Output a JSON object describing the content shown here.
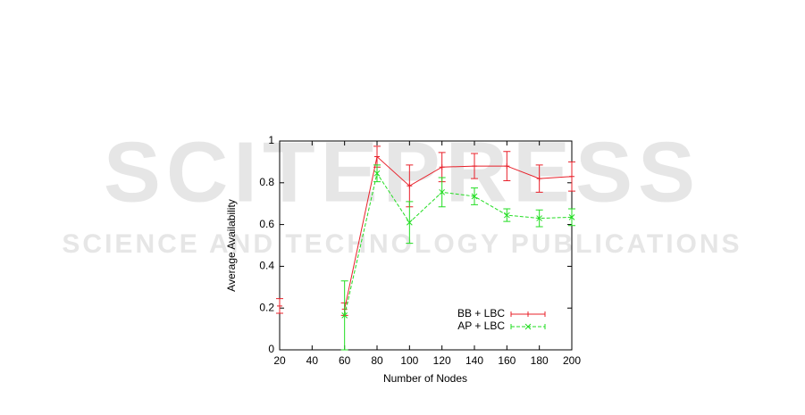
{
  "watermark": {
    "title": "SCITEPRESS",
    "subtitle": "SCIENCE AND TECHNOLOGY PUBLICATIONS"
  },
  "chart_data": {
    "type": "line",
    "xlabel": "Number of Nodes",
    "ylabel": "Average Availability",
    "x": [
      20,
      40,
      60,
      80,
      100,
      120,
      140,
      160,
      180,
      200
    ],
    "series": [
      {
        "name": "BB + LBC",
        "color": "#e8202a",
        "values": [
          0.21,
          null,
          0.195,
          0.925,
          0.785,
          0.875,
          0.88,
          0.88,
          0.82,
          0.83
        ],
        "errors": [
          0.035,
          null,
          0.03,
          0.05,
          0.1,
          0.07,
          0.06,
          0.07,
          0.065,
          0.07
        ]
      },
      {
        "name": "AP + LBC",
        "color": "#22dd22",
        "values": [
          null,
          null,
          0.165,
          0.845,
          0.61,
          0.755,
          0.735,
          0.645,
          0.63,
          0.635
        ],
        "errors": [
          null,
          null,
          0.165,
          0.04,
          0.1,
          0.07,
          0.04,
          0.03,
          0.04,
          0.04
        ]
      }
    ],
    "xlim": [
      20,
      200
    ],
    "ylim": [
      0,
      1
    ],
    "xticks": [
      20,
      40,
      60,
      80,
      100,
      120,
      140,
      160,
      180,
      200
    ],
    "yticks": [
      0,
      0.2,
      0.4,
      0.6,
      0.8,
      1
    ],
    "legend": "lower right"
  }
}
